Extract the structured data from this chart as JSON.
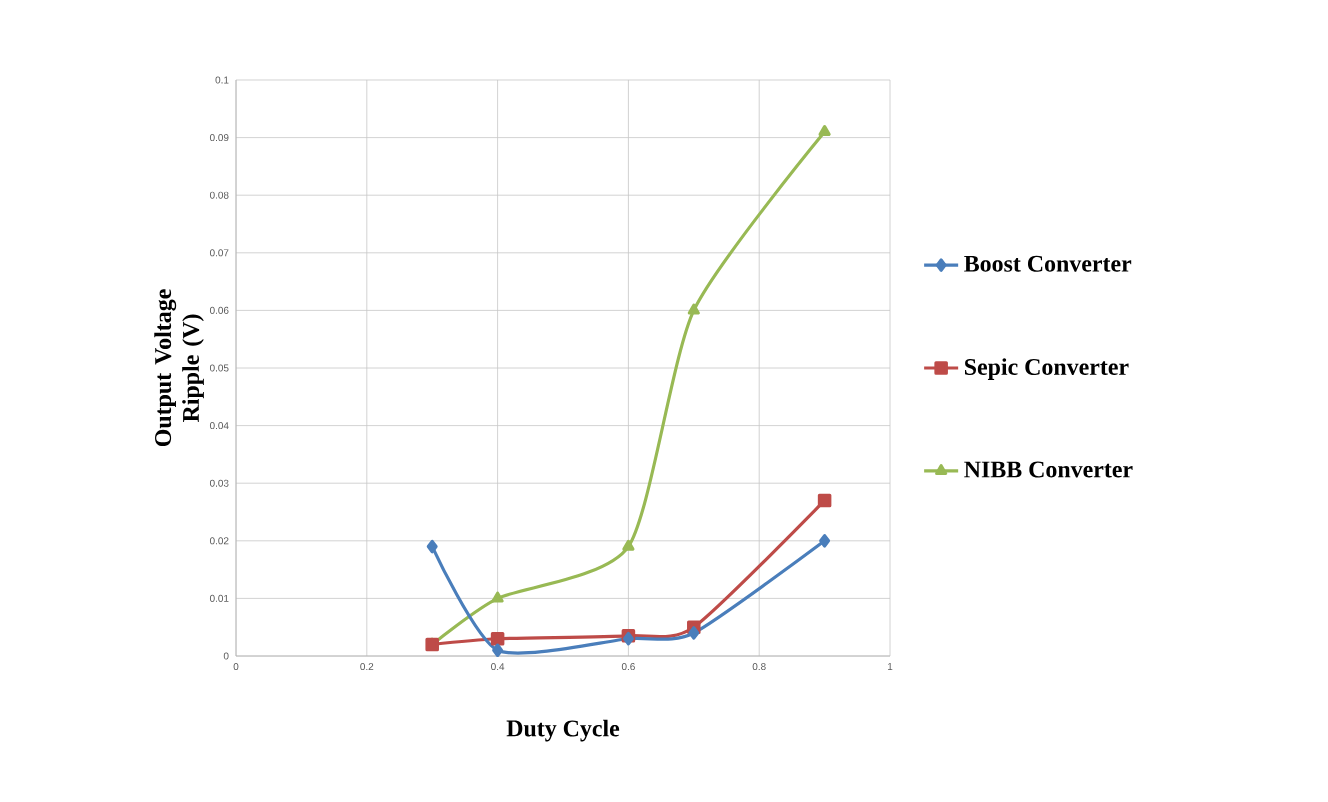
{
  "chart_data": {
    "type": "line",
    "xlabel": "Duty Cycle",
    "ylabel": "Output Voltage Ripple (V)",
    "x": [
      0.3,
      0.4,
      0.6,
      0.7,
      0.9
    ],
    "series": [
      {
        "name": "Boost Converter",
        "color": "#4a7ebb",
        "marker": "diamond",
        "values": [
          0.019,
          0.001,
          0.003,
          0.004,
          0.02
        ]
      },
      {
        "name": "Sepic Converter",
        "color": "#be4b48",
        "marker": "square",
        "values": [
          0.002,
          0.003,
          0.0035,
          0.005,
          0.027
        ]
      },
      {
        "name": "NIBB Converter",
        "color": "#98b954",
        "marker": "triangle",
        "values": [
          0.002,
          0.01,
          0.019,
          0.06,
          0.091
        ]
      }
    ],
    "xlim": [
      0,
      1
    ],
    "xticks": [
      0,
      0.2,
      0.4,
      0.6,
      0.8,
      1
    ],
    "ylim": [
      0,
      0.1
    ],
    "yticks": [
      0,
      0.01,
      0.02,
      0.03,
      0.04,
      0.05,
      0.06,
      0.07,
      0.08,
      0.09,
      0.1
    ],
    "grid": true,
    "legend": "right",
    "line_style": "solid"
  }
}
